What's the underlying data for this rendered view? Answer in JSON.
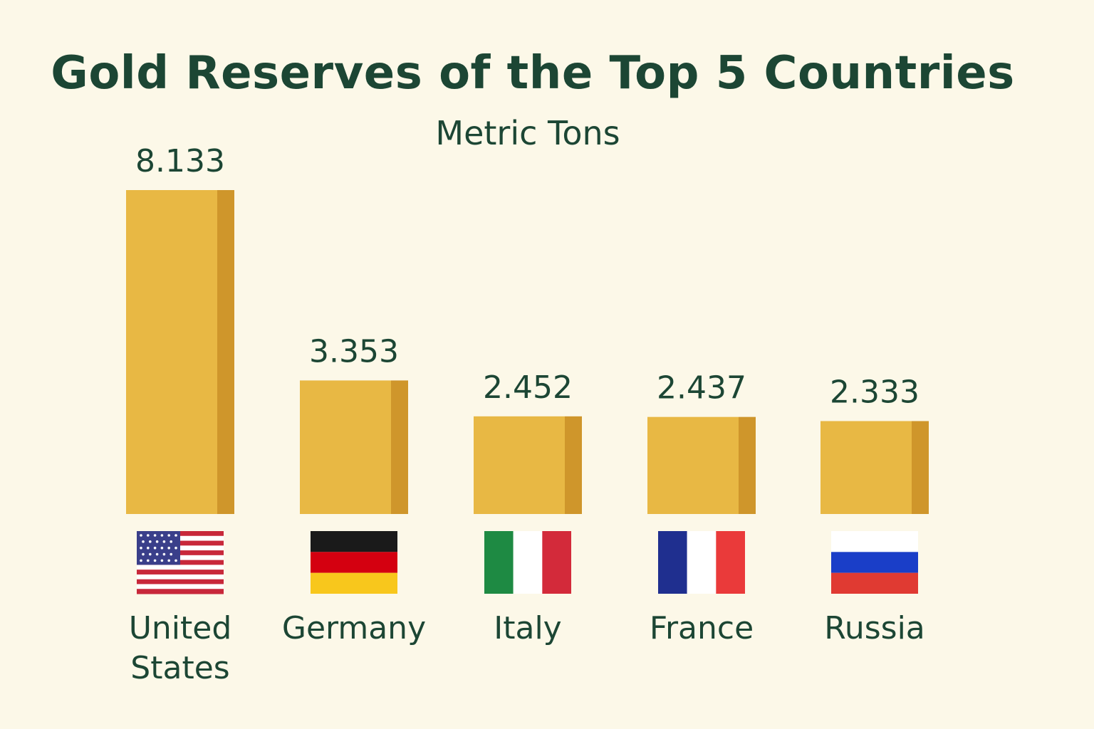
{
  "chart_data": {
    "type": "bar",
    "title": "Gold Reserves of the Top 5 Countries",
    "subtitle": "Metric Tons",
    "categories": [
      "United States",
      "Germany",
      "Italy",
      "France",
      "Russia"
    ],
    "category_lines": [
      [
        "United",
        "States"
      ],
      [
        "Germany"
      ],
      [
        "Italy"
      ],
      [
        "France"
      ],
      [
        "Russia"
      ]
    ],
    "values": [
      8133,
      3353,
      2452,
      2437,
      2333
    ],
    "value_labels": [
      "8.133",
      "3.353",
      "2.452",
      "2.437",
      "2.333"
    ],
    "flags": [
      "us-flag-icon",
      "germany-flag-icon",
      "italy-flag-icon",
      "france-flag-icon",
      "russia-flag-icon"
    ],
    "xlabel": "",
    "ylabel": "",
    "grid": false,
    "legend": "none"
  },
  "colors": {
    "background": "#fcf8e8",
    "bar_face": "#e8b844",
    "bar_side": "#cf962b",
    "text": "#1c4634"
  }
}
